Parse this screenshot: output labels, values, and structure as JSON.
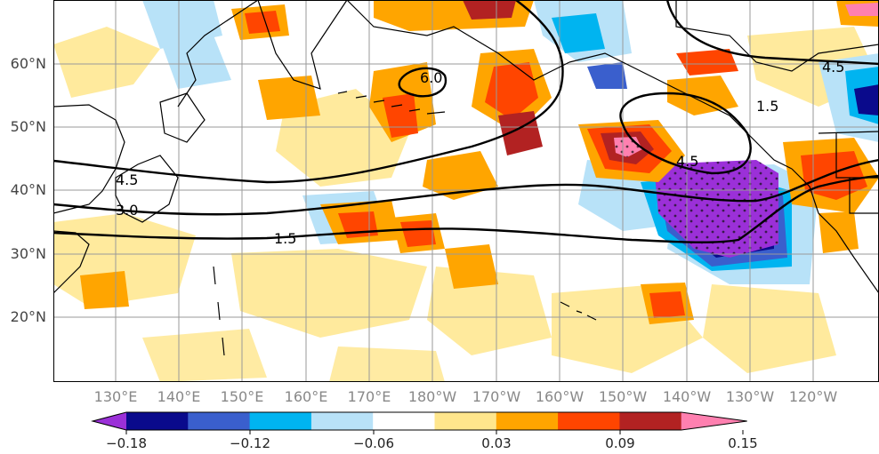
{
  "map": {
    "lat_labels": [
      "60°N",
      "50°N",
      "40°N",
      "30°N",
      "20°N"
    ],
    "lon_labels": [
      "130°E",
      "140°E",
      "150°E",
      "160°E",
      "170°E",
      "180°W",
      "170°W",
      "160°W",
      "150°W",
      "140°W",
      "130°W",
      "120°W"
    ],
    "contour_labels": [
      "6.0",
      "4.5",
      "4.5",
      "4.5",
      "3.0",
      "1.5",
      "1.5"
    ]
  },
  "colorbar": {
    "tick_labels": [
      "−0.18",
      "−0.12",
      "−0.06",
      "0.03",
      "0.09",
      "0.15"
    ],
    "colors": [
      "#9b30d8",
      "#0a0a8c",
      "#3a5fcd",
      "#00b4f0",
      "#b8e2f8",
      "#ffffff",
      "#ffe68c",
      "#ffa500",
      "#ff4500",
      "#b22222",
      "#ff80b0"
    ]
  }
}
